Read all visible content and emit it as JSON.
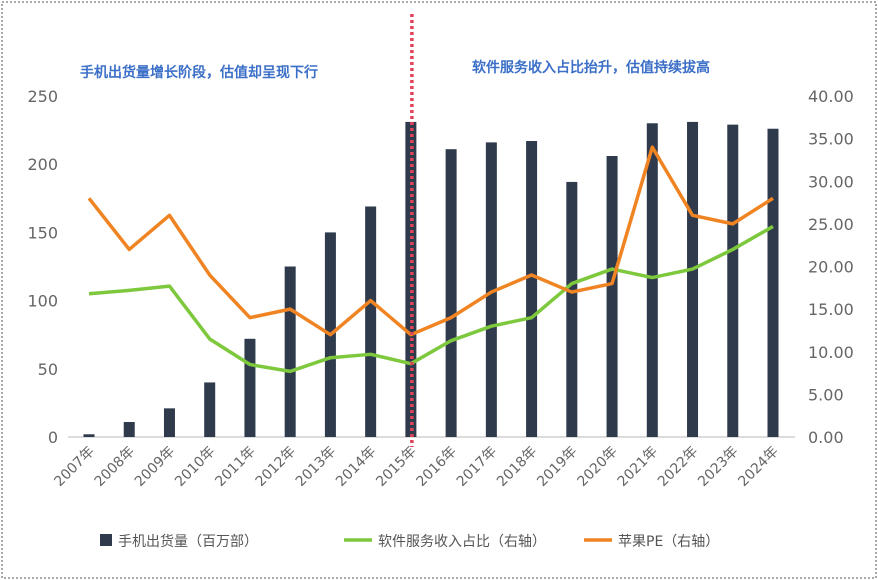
{
  "chart_data": {
    "type": "bar+line",
    "annotations": [
      "手机出货量增长阶段，估值却呈现下行",
      "软件服务收入占比抬升，估值持续拔高"
    ],
    "categories": [
      "2007年",
      "2008年",
      "2009年",
      "2010年",
      "2011年",
      "2012年",
      "2013年",
      "2014年",
      "2015年",
      "2016年",
      "2017年",
      "2018年",
      "2019年",
      "2020年",
      "2021年",
      "2022年",
      "2023年",
      "2024年"
    ],
    "left_axis": {
      "ylim": [
        0,
        250
      ],
      "ticks": [
        "0",
        "50",
        "100",
        "150",
        "200",
        "250"
      ]
    },
    "right_axis": {
      "ylim": [
        0,
        40
      ],
      "ticks": [
        "0.00",
        "5.00",
        "10.00",
        "15.00",
        "20.00",
        "25.00",
        "30.00",
        "35.00",
        "40.00"
      ]
    },
    "divider_after": "2015年",
    "series": [
      {
        "name": "手机出货量（百万部）",
        "type": "bar",
        "axis": "left",
        "color": "#2f3a4c",
        "values": [
          2,
          11,
          21,
          40,
          72,
          125,
          150,
          169,
          231,
          211,
          216,
          217,
          187,
          206,
          230,
          231,
          229,
          226
        ]
      },
      {
        "name": "软件服务收入占比（右轴）",
        "type": "line",
        "axis": "right",
        "color": "#7dc83c",
        "values": [
          16.8,
          17.2,
          17.7,
          11.5,
          8.5,
          7.7,
          9.3,
          9.7,
          8.6,
          11.3,
          13.0,
          14.0,
          18.0,
          19.7,
          18.7,
          19.7,
          22.0,
          24.7
        ]
      },
      {
        "name": "苹果PE（右轴）",
        "type": "line",
        "axis": "right",
        "color": "#f08423",
        "values": [
          28,
          22,
          26,
          19,
          14,
          15,
          12,
          16,
          12,
          14,
          17,
          19,
          17,
          18,
          34,
          26,
          25,
          28
        ]
      }
    ],
    "annotation_color": "#3b6fc8",
    "divider_color": "#e0435a",
    "legend_position": "bottom"
  }
}
